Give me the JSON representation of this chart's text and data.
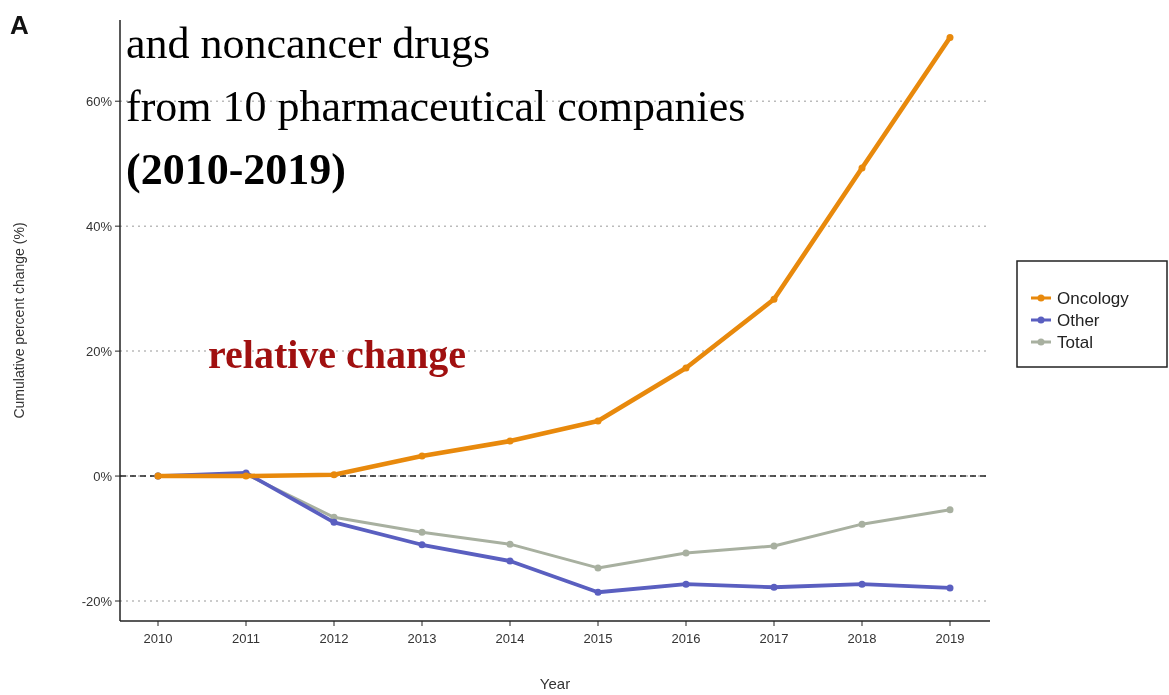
{
  "chart_data": {
    "type": "line",
    "title": "and noncancer drugs\nfrom 10 pharmaceutical companies\n(2010-2019)",
    "xlabel": "Year",
    "ylabel": "Cumulative percent change (%)",
    "annotations": [
      "A",
      "relative change"
    ],
    "categories": [
      "2010",
      "2011",
      "2012",
      "2013",
      "2014",
      "2015",
      "2016",
      "2017",
      "2018",
      "2019"
    ],
    "series": [
      {
        "name": "Oncology",
        "color": "#e8890c",
        "values": [
          0,
          0,
          0.2,
          3.2,
          5.6,
          8.8,
          17.3,
          28.3,
          49.3,
          70.2
        ]
      },
      {
        "name": "Other",
        "color": "#5a5fc0",
        "values": [
          0,
          0.5,
          -7.4,
          -11.0,
          -13.6,
          -18.6,
          -17.3,
          -17.8,
          -17.3,
          -17.9
        ]
      },
      {
        "name": "Total",
        "color": "#a8b0a0",
        "values": [
          0,
          0.3,
          -6.6,
          -9.0,
          -10.9,
          -14.7,
          -12.3,
          -11.2,
          -7.7,
          -5.4
        ]
      }
    ],
    "ylim": [
      -23.2,
      73
    ],
    "yticks": [
      {
        "value": -20,
        "label": "-20%"
      },
      {
        "value": 0,
        "label": "0%"
      },
      {
        "value": 20,
        "label": "20%"
      },
      {
        "value": 40,
        "label": "40%"
      },
      {
        "value": 60,
        "label": "60%"
      }
    ],
    "grid": "y",
    "line_style": "solid",
    "marker": "circle",
    "legend": "right",
    "ref_lines": [
      {
        "axis": "y",
        "value": 0,
        "color": "#222222",
        "line_style": "dashed"
      }
    ]
  }
}
